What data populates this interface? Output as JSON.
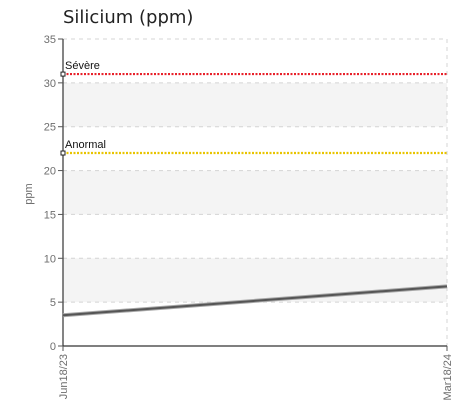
{
  "chart_data": {
    "type": "line",
    "title": "Silicium (ppm)",
    "ylabel": "ppm",
    "xlabel": "",
    "ylim": [
      0,
      35
    ],
    "yticks": [
      0,
      5,
      10,
      15,
      20,
      25,
      30,
      35
    ],
    "x": [
      "Jun18/23",
      "Mar18/24"
    ],
    "series": [
      {
        "values": [
          3.5,
          6.8
        ],
        "color": "#555555"
      }
    ],
    "reference_lines": [
      {
        "label": "Sévère",
        "value": 31,
        "color": "#e8202a"
      },
      {
        "label": "Anormal",
        "value": 22,
        "color": "#e8c400"
      }
    ],
    "grid": true,
    "alternating_bands": true
  }
}
